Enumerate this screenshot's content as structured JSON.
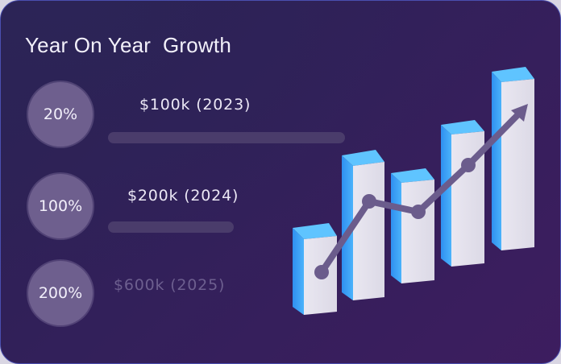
{
  "card": {
    "title": "Year On Year  Growth",
    "rows": [
      {
        "percent": "20%",
        "label": "$100k (2023)",
        "bar_fill": 1.0
      },
      {
        "percent": "100%",
        "label": "$200k (2024)",
        "bar_fill": 0.53
      },
      {
        "percent": "200%",
        "label": "$600k (2025)",
        "bar_fill": 0
      }
    ]
  },
  "colors": {
    "circle": "#6e5f8e",
    "bar_track": "#4a3c6b",
    "bar_front": "#e3e1ec",
    "bar_side": "#3fa2f5",
    "trend_line": "#6b5c8c"
  }
}
